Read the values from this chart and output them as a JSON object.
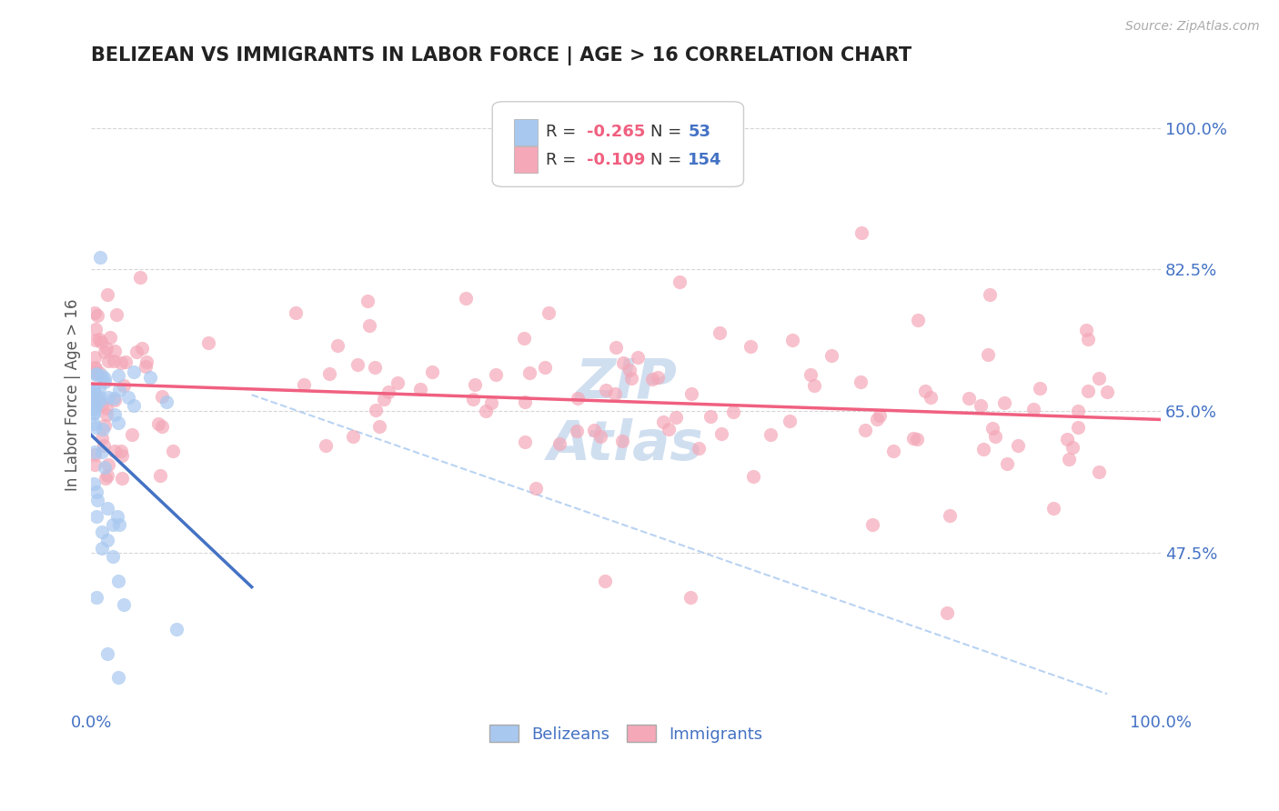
{
  "title": "BELIZEAN VS IMMIGRANTS IN LABOR FORCE | AGE > 16 CORRELATION CHART",
  "source": "Source: ZipAtlas.com",
  "ylabel": "In Labor Force | Age > 16",
  "y_tick_values": [
    0.475,
    0.65,
    0.825,
    1.0
  ],
  "y_tick_labels": [
    "47.5%",
    "65.0%",
    "82.5%",
    "100.0%"
  ],
  "x_tick_labels": [
    "0.0%",
    "100.0%"
  ],
  "x_tick_values": [
    0.0,
    1.0
  ],
  "legend_r1": "R = -0.265",
  "legend_n1": "N =  53",
  "legend_r2": "R = -0.109",
  "legend_n2": "N = 154",
  "belizean_color": "#a8c8f0",
  "immigrant_color": "#f4a8b8",
  "belizean_line_color": "#4472c4",
  "immigrant_line_color": "#f06080",
  "dashed_line_color": "#a8c8f0",
  "title_color": "#222222",
  "source_color": "#aaaaaa",
  "axis_label_color": "#4472c4",
  "legend_r_color": "#f06080",
  "legend_n_color": "#4472c4",
  "background_color": "#ffffff",
  "grid_color": "#cccccc",
  "watermark_color": "#d0dff0",
  "ylim_min": 0.28,
  "ylim_max": 1.06,
  "xlim_min": 0.0,
  "xlim_max": 1.0
}
